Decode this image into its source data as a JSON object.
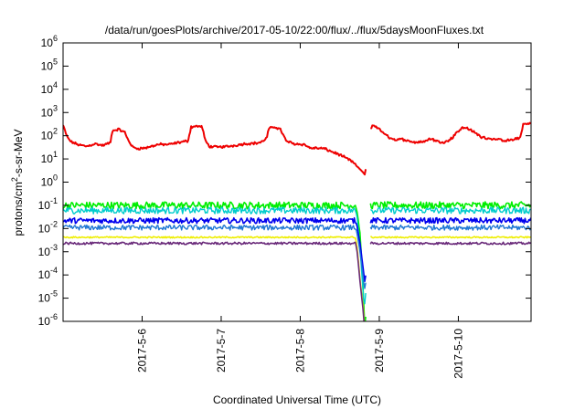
{
  "chart_data": {
    "type": "line",
    "title": "/data/run/goesPlots/archive/2017-05-10/22:00/flux/../flux/5daysMoonFluxes.txt",
    "xlabel": "Coordinated Universal Time (UTC)",
    "ylabel_prefix": "protons/cm",
    "ylabel_sup": "2",
    "ylabel_suffix": "-s-sr-MeV",
    "y_scale": "log",
    "ylim": [
      1e-06,
      1000000.0
    ],
    "y_ticks": [
      {
        "value": 1e-06,
        "base": "10",
        "exp": "-6"
      },
      {
        "value": 1e-05,
        "base": "10",
        "exp": "-5"
      },
      {
        "value": 0.0001,
        "base": "10",
        "exp": "-4"
      },
      {
        "value": 0.001,
        "base": "10",
        "exp": "-3"
      },
      {
        "value": 0.01,
        "base": "10",
        "exp": "-2"
      },
      {
        "value": 0.1,
        "base": "10",
        "exp": "-1"
      },
      {
        "value": 1,
        "base": "10",
        "exp": "0"
      },
      {
        "value": 10,
        "base": "10",
        "exp": "1"
      },
      {
        "value": 100,
        "base": "10",
        "exp": "2"
      },
      {
        "value": 1000.0,
        "base": "10",
        "exp": "3"
      },
      {
        "value": 10000.0,
        "base": "10",
        "exp": "4"
      },
      {
        "value": 100000.0,
        "base": "10",
        "exp": "5"
      },
      {
        "value": 1000000.0,
        "base": "10",
        "exp": "6"
      }
    ],
    "xlim_days": [
      5.0,
      10.92
    ],
    "x_ticks": [
      {
        "day": 6,
        "label": "2017-5-6"
      },
      {
        "day": 7,
        "label": "2017-5-7"
      },
      {
        "day": 8,
        "label": "2017-5-8"
      },
      {
        "day": 9,
        "label": "2017-5-9"
      },
      {
        "day": 10,
        "label": "2017-5-10"
      }
    ],
    "grid": false,
    "legend": "none",
    "gap": [
      8.83,
      8.88
    ],
    "series": [
      {
        "color": "#ee0000",
        "width": 2.0,
        "noise": 0.08,
        "points": [
          [
            5.0,
            280
          ],
          [
            5.05,
            90
          ],
          [
            5.1,
            55
          ],
          [
            5.2,
            40
          ],
          [
            5.3,
            35
          ],
          [
            5.4,
            45
          ],
          [
            5.5,
            38
          ],
          [
            5.6,
            50
          ],
          [
            5.62,
            160
          ],
          [
            5.7,
            190
          ],
          [
            5.78,
            140
          ],
          [
            5.82,
            70
          ],
          [
            5.88,
            32
          ],
          [
            5.95,
            28
          ],
          [
            6.05,
            30
          ],
          [
            6.2,
            42
          ],
          [
            6.35,
            42
          ],
          [
            6.45,
            50
          ],
          [
            6.58,
            60
          ],
          [
            6.62,
            240
          ],
          [
            6.7,
            260
          ],
          [
            6.76,
            240
          ],
          [
            6.8,
            60
          ],
          [
            6.85,
            35
          ],
          [
            6.95,
            32
          ],
          [
            7.1,
            35
          ],
          [
            7.3,
            45
          ],
          [
            7.45,
            48
          ],
          [
            7.52,
            55
          ],
          [
            7.58,
            85
          ],
          [
            7.6,
            200
          ],
          [
            7.68,
            240
          ],
          [
            7.75,
            190
          ],
          [
            7.82,
            60
          ],
          [
            7.92,
            45
          ],
          [
            8.05,
            42
          ],
          [
            8.12,
            30
          ],
          [
            8.3,
            28
          ],
          [
            8.5,
            15
          ],
          [
            8.65,
            8
          ],
          [
            8.78,
            3
          ],
          [
            8.82,
            2
          ],
          [
            8.88,
            180
          ],
          [
            8.92,
            300
          ],
          [
            9.0,
            190
          ],
          [
            9.1,
            95
          ],
          [
            9.2,
            65
          ],
          [
            9.3,
            70
          ],
          [
            9.45,
            52
          ],
          [
            9.55,
            55
          ],
          [
            9.65,
            75
          ],
          [
            9.75,
            55
          ],
          [
            9.85,
            55
          ],
          [
            9.92,
            80
          ],
          [
            9.98,
            140
          ],
          [
            10.05,
            220
          ],
          [
            10.12,
            210
          ],
          [
            10.2,
            140
          ],
          [
            10.3,
            85
          ],
          [
            10.45,
            72
          ],
          [
            10.6,
            60
          ],
          [
            10.72,
            70
          ],
          [
            10.78,
            80
          ],
          [
            10.82,
            310
          ],
          [
            10.92,
            330
          ]
        ]
      },
      {
        "color": "#00ee00",
        "width": 1.6,
        "noise": 0.3,
        "points": [
          [
            5.0,
            0.1
          ],
          [
            8.7,
            0.1
          ],
          [
            8.72,
            0.05
          ],
          [
            8.76,
            0.005
          ],
          [
            8.8,
            1e-05
          ],
          [
            8.82,
            3e-07
          ],
          [
            8.88,
            0.1
          ],
          [
            10.92,
            0.1
          ]
        ]
      },
      {
        "color": "#00cccc",
        "width": 1.4,
        "noise": 0.28,
        "points": [
          [
            5.0,
            0.06
          ],
          [
            8.7,
            0.06
          ],
          [
            8.72,
            0.03
          ],
          [
            8.76,
            0.001
          ],
          [
            8.8,
            1e-05
          ],
          [
            8.82,
            5e-06
          ],
          [
            8.88,
            0.06
          ],
          [
            10.92,
            0.06
          ]
        ]
      },
      {
        "color": "#0000ee",
        "width": 1.6,
        "noise": 0.24,
        "points": [
          [
            5.0,
            0.022
          ],
          [
            8.7,
            0.022
          ],
          [
            8.72,
            0.012
          ],
          [
            8.76,
            0.002
          ],
          [
            8.8,
            0.00015
          ],
          [
            8.82,
            4e-05
          ],
          [
            8.88,
            0.022
          ],
          [
            10.92,
            0.022
          ]
        ]
      },
      {
        "color": "#1f77d4",
        "width": 1.4,
        "noise": 0.22,
        "points": [
          [
            5.0,
            0.011
          ],
          [
            8.7,
            0.011
          ],
          [
            8.72,
            0.006
          ],
          [
            8.76,
            0.0008
          ],
          [
            8.8,
            6e-05
          ],
          [
            8.82,
            2e-05
          ],
          [
            8.88,
            0.011
          ],
          [
            10.92,
            0.011
          ]
        ]
      },
      {
        "color": "#eeee00",
        "width": 1.6,
        "noise": 0.06,
        "points": [
          [
            5.0,
            0.0042
          ],
          [
            8.7,
            0.0042
          ],
          [
            8.72,
            0.0015
          ],
          [
            8.76,
            5e-05
          ],
          [
            8.8,
            3e-06
          ],
          [
            8.82,
            2e-07
          ],
          [
            8.88,
            0.0042
          ],
          [
            10.92,
            0.0042
          ]
        ]
      },
      {
        "color": "#6a2a7a",
        "width": 1.6,
        "noise": 0.1,
        "points": [
          [
            5.0,
            0.0023
          ],
          [
            8.7,
            0.0023
          ],
          [
            8.72,
            0.001
          ],
          [
            8.76,
            4e-05
          ],
          [
            8.8,
            2e-06
          ],
          [
            8.82,
            2e-07
          ],
          [
            8.88,
            0.0023
          ],
          [
            10.92,
            0.0023
          ]
        ]
      }
    ]
  }
}
